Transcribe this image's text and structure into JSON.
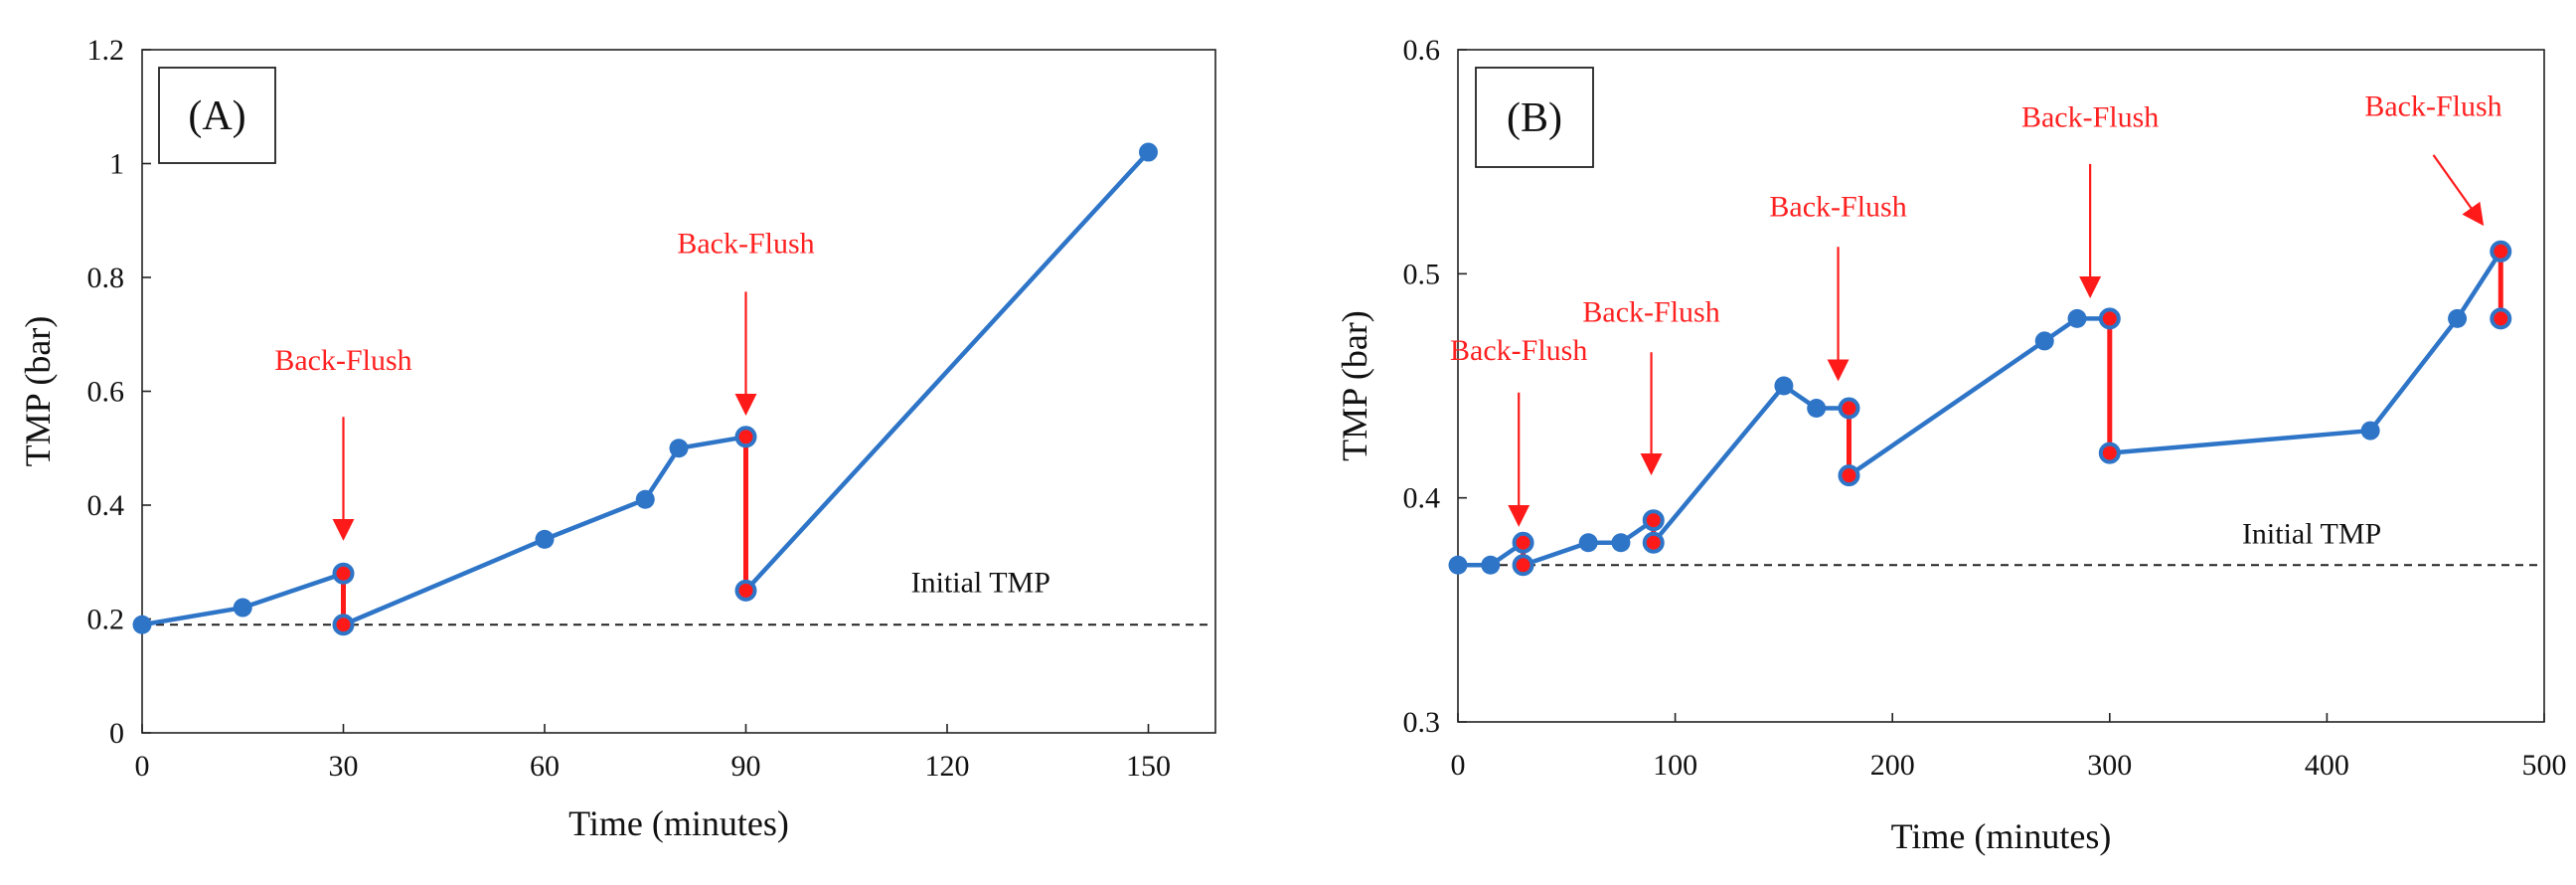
{
  "chart_data": [
    {
      "type": "line",
      "panel_label": "(A)",
      "xlabel": "Time (minutes)",
      "ylabel": "TMP (bar)",
      "xlim": [
        0,
        160
      ],
      "ylim": [
        0,
        1.2
      ],
      "xticks": [
        0,
        30,
        60,
        90,
        120,
        150
      ],
      "yticks": [
        0,
        0.2,
        0.4,
        0.6,
        0.8,
        1,
        1.2
      ],
      "x_tick_labels": [
        "0",
        "30",
        "60",
        "90",
        "120",
        "150"
      ],
      "y_tick_labels": [
        "0",
        "0.2",
        "0.4",
        "0.6",
        "0.8",
        "1",
        "1.2"
      ],
      "grid": false,
      "series": [
        {
          "name": "TMP",
          "color": "#2e75c8",
          "marker_color": "#2e75c8",
          "x": [
            0,
            15,
            30,
            30,
            60,
            75,
            80,
            90,
            90,
            150
          ],
          "y": [
            0.19,
            0.22,
            0.28,
            0.19,
            0.34,
            0.41,
            0.5,
            0.52,
            0.25,
            1.02
          ]
        }
      ],
      "back_flush_color": "#ff1a1a",
      "back_flush_drops": [
        {
          "x": 30,
          "from": 0.28,
          "to": 0.19
        },
        {
          "x": 90,
          "from": 0.52,
          "to": 0.25
        }
      ],
      "reference_line": {
        "label": "Initial TMP",
        "y": 0.19,
        "label_x": 125,
        "label_y": 0.265
      },
      "annotations": [
        {
          "text": "Back-Flush",
          "x": 30,
          "text_y": 0.655,
          "arrow_from_y": 0.555,
          "arrow_to_y": 0.345
        },
        {
          "text": "Back-Flush",
          "x": 90,
          "text_y": 0.86,
          "arrow_from_y": 0.775,
          "arrow_to_y": 0.565
        }
      ]
    },
    {
      "type": "line",
      "panel_label": "(B)",
      "xlabel": "Time (minutes)",
      "ylabel": "TMP (bar)",
      "xlim": [
        0,
        500
      ],
      "ylim": [
        0.3,
        0.6
      ],
      "xticks": [
        0,
        100,
        200,
        300,
        400,
        500
      ],
      "yticks": [
        0.3,
        0.4,
        0.5,
        0.6
      ],
      "x_tick_labels": [
        "0",
        "100",
        "200",
        "300",
        "400",
        "500"
      ],
      "y_tick_labels": [
        "0.3",
        "0.4",
        "0.5",
        "0.6"
      ],
      "grid": false,
      "series": [
        {
          "name": "TMP",
          "color": "#2e75c8",
          "marker_color": "#2e75c8",
          "x": [
            0,
            15,
            30,
            30,
            60,
            75,
            90,
            90,
            150,
            165,
            180,
            180,
            270,
            285,
            300,
            300,
            420,
            460,
            480,
            480
          ],
          "y": [
            0.37,
            0.37,
            0.38,
            0.37,
            0.38,
            0.38,
            0.39,
            0.38,
            0.45,
            0.44,
            0.44,
            0.41,
            0.47,
            0.48,
            0.48,
            0.42,
            0.43,
            0.48,
            0.51,
            0.48
          ]
        }
      ],
      "back_flush_color": "#ff1a1a",
      "back_flush_drops": [
        {
          "x": 30,
          "from": 0.38,
          "to": 0.37
        },
        {
          "x": 90,
          "from": 0.39,
          "to": 0.38
        },
        {
          "x": 180,
          "from": 0.44,
          "to": 0.41
        },
        {
          "x": 300,
          "from": 0.48,
          "to": 0.42
        },
        {
          "x": 480,
          "from": 0.51,
          "to": 0.48
        }
      ],
      "reference_line": {
        "label": "Initial TMP",
        "y": 0.37,
        "label_x": 393,
        "label_y": 0.384
      },
      "annotations": [
        {
          "text": "Back-Flush",
          "x": 28,
          "text_y": 0.466,
          "arrow_from_y": 0.447,
          "arrow_to_y": 0.389
        },
        {
          "text": "Back-Flush",
          "x": 89,
          "text_y": 0.483,
          "arrow_from_y": 0.465,
          "arrow_to_y": 0.412
        },
        {
          "text": "Back-Flush",
          "x": 175,
          "text_y": 0.53,
          "arrow_from_y": 0.512,
          "arrow_to_y": 0.454
        },
        {
          "text": "Back-Flush",
          "x": 291,
          "text_y": 0.57,
          "arrow_from_y": 0.549,
          "arrow_to_y": 0.491
        },
        {
          "text": "Back-Flush",
          "x": 449,
          "text_y": 0.575,
          "arrow_from_y": 0.553,
          "arrow_to_y": 0.523,
          "arrow_to_x": 471
        }
      ]
    }
  ]
}
